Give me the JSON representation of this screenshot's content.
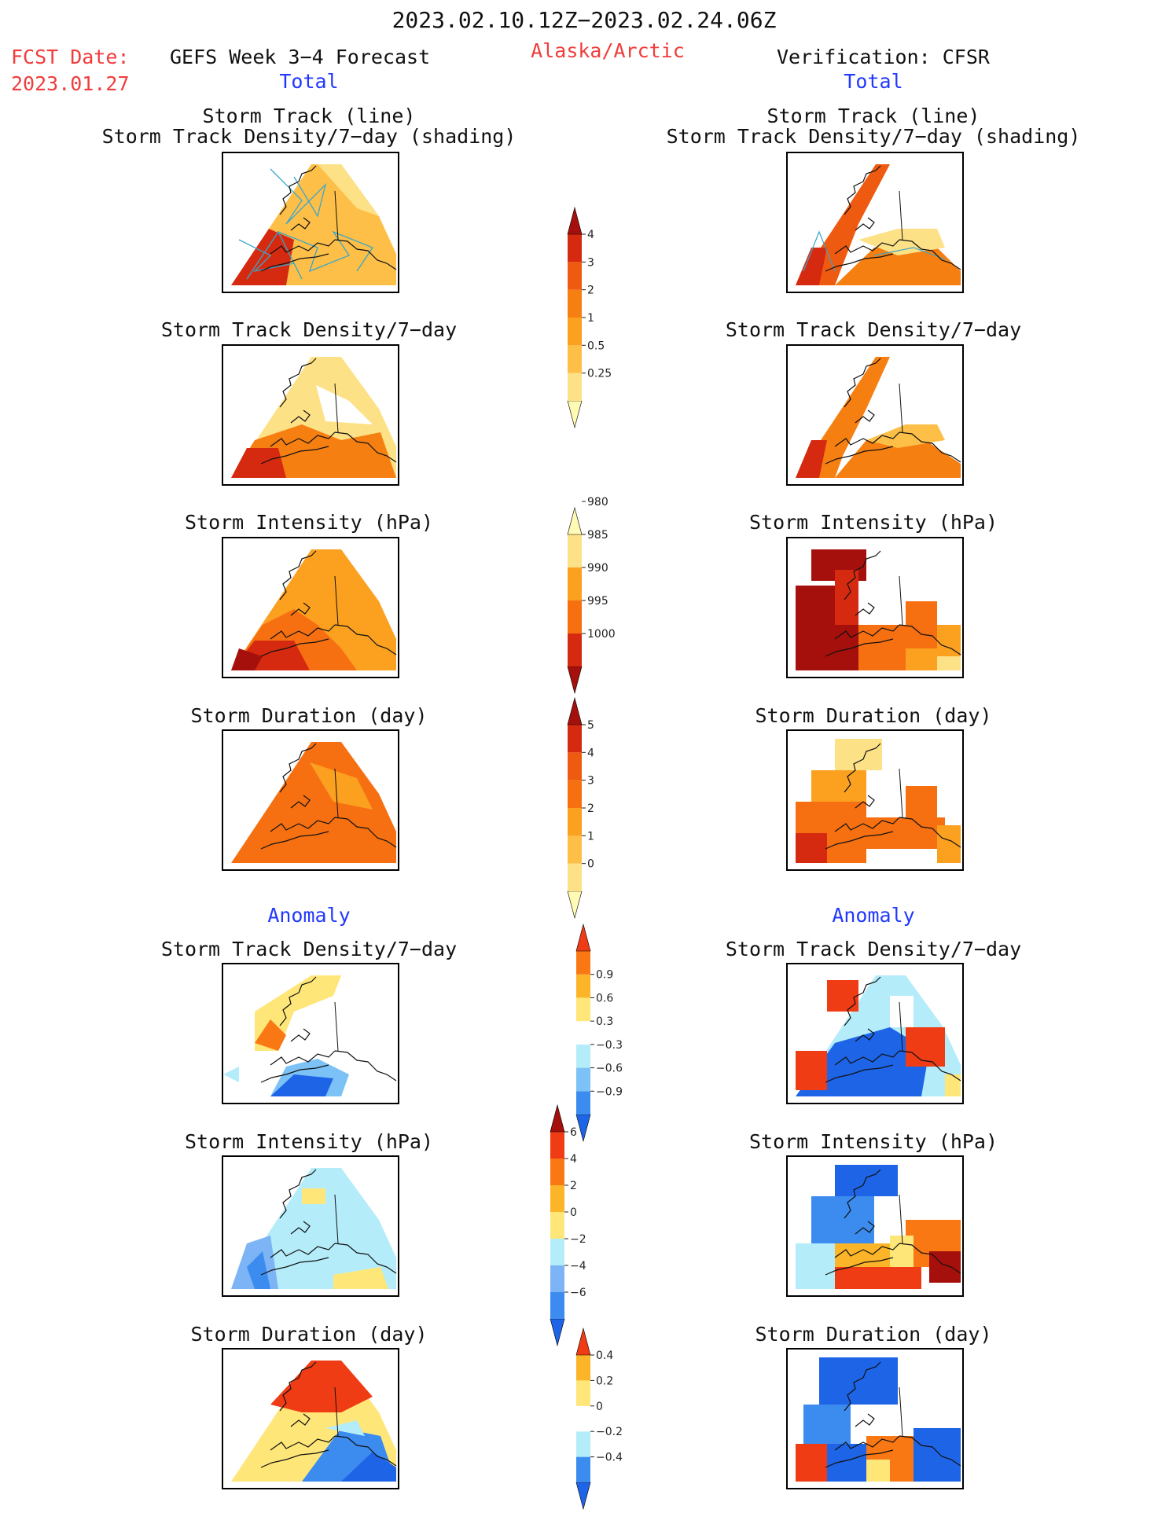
{
  "header": {
    "period": "2023.02.10.12Z−2023.02.24.06Z",
    "fcst_label": "FCST Date:",
    "fcst_date": "2023.01.27",
    "model": "GEFS Week 3−4 Forecast",
    "region": "Alaska/Arctic",
    "verification": "Verification: CFSR"
  },
  "sections": {
    "total_label": "Total",
    "anomaly_label": "Anomaly"
  },
  "panel_titles": {
    "track_line": "Storm Track (line)",
    "track_shading": "Storm Track Density/7−day (shading)",
    "density": "Storm Track Density/7−day",
    "intensity": "Storm Intensity (hPa)",
    "duration": "Storm Duration (day)"
  },
  "colors": {
    "title_red": "#f03c3c",
    "section_blue": "#2238ff",
    "track_line": "#3aa6c9"
  },
  "chart_data": [
    {
      "type": "heatmap",
      "id": "total_density_colorbar",
      "levels": [
        "0.25",
        "0.5",
        "1",
        "2",
        "3",
        "4"
      ],
      "colors": [
        "#fffab4",
        "#fde186",
        "#fdbf48",
        "#fca020",
        "#f67f12",
        "#ee5a10",
        "#d62a10",
        "#a5100c"
      ],
      "arrows": [
        "bottom",
        "top"
      ]
    },
    {
      "type": "heatmap",
      "id": "total_intensity_colorbar",
      "levels": [
        "980",
        "985",
        "990",
        "995",
        "1000"
      ],
      "colors": [
        "#fffab4",
        "#fde186",
        "#fca020",
        "#f67012",
        "#d62a10",
        "#a5100c"
      ],
      "arrows": [
        "top",
        "bottom"
      ],
      "reverse": true
    },
    {
      "type": "heatmap",
      "id": "total_duration_colorbar",
      "levels": [
        "0",
        "1",
        "2",
        "3",
        "4",
        "5"
      ],
      "colors": [
        "#fffab4",
        "#fde186",
        "#fdbf48",
        "#fca020",
        "#f67012",
        "#ee5a10",
        "#d62a10",
        "#a5100c"
      ],
      "arrows": [
        "bottom",
        "top"
      ]
    },
    {
      "type": "heatmap",
      "id": "anom_density_colorbar",
      "levels": [
        "−0.9",
        "−0.6",
        "−0.3",
        "0.3",
        "0.6",
        "0.9"
      ],
      "colors": [
        "#1e64e6",
        "#3c8cf0",
        "#7cc2f6",
        "#b4ecfa",
        "#ffffff",
        "#ffe678",
        "#fcb428",
        "#fa7814",
        "#f03c14"
      ],
      "arrows": [
        "bottom",
        "top"
      ]
    },
    {
      "type": "heatmap",
      "id": "anom_intensity_colorbar",
      "levels": [
        "−6",
        "−4",
        "−2",
        "0",
        "2",
        "4",
        "6"
      ],
      "colors": [
        "#1e64e6",
        "#3c8cf0",
        "#7cb4f6",
        "#b4ecfa",
        "#ffe678",
        "#fcb428",
        "#fa7814",
        "#f03c14",
        "#a5100c"
      ],
      "arrows": [
        "bottom",
        "top"
      ]
    },
    {
      "type": "heatmap",
      "id": "anom_duration_colorbar",
      "levels": [
        "−0.4",
        "−0.2",
        "0",
        "0.2",
        "0.4"
      ],
      "colors": [
        "#1e64e6",
        "#3c8cf0",
        "#b4ecfa",
        "#ffffff",
        "#ffe678",
        "#fcb428",
        "#f03c14"
      ],
      "arrows": [
        "bottom",
        "top"
      ]
    }
  ]
}
